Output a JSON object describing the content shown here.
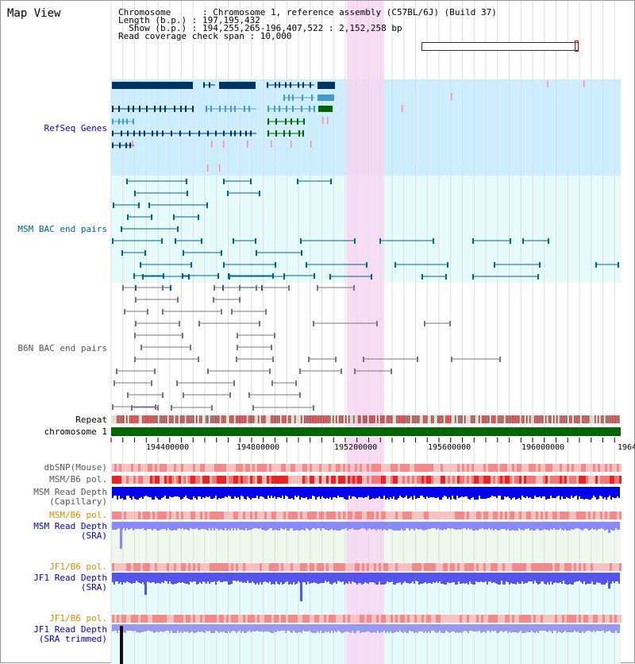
{
  "title": "Map View",
  "info": {
    "line1": "Chromosome      : Chromosome 1, reference assembly (C57BL/6J) (Build 37)",
    "line2": "Length (b.p.) : 197,195,432",
    "line3": "  Show (b.p.) : 194,255,265-196,407,522 : 2,152,258 bp",
    "line4": "Read coverage check span : 10,000"
  },
  "tracks": {
    "refseq": "RefSeq Genes",
    "msm_bac": "MSM BAC end pairs",
    "b6n_bac": "B6N BAC end pairs",
    "repeat": "Repeat",
    "chromosome": "chromosome 1",
    "dbsnp": "dbSNP(Mouse)",
    "msm_b6_pol_1": "MSM/B6 pol.",
    "msm_read_depth_cap_1": "MSM Read Depth",
    "msm_read_depth_cap_2": "(Capillary)",
    "msm_b6_pol_2": "MSM/B6 pol.",
    "msm_read_depth_sra_1": "MSM Read Depth",
    "msm_read_depth_sra_2": "(SRA)",
    "jf1_b6_pol_1": "JF1/B6 pol.",
    "jf1_read_depth_sra_1": "JF1 Read Depth",
    "jf1_read_depth_sra_2": "(SRA)",
    "jf1_b6_pol_2": "JF1/B6 pol.",
    "jf1_read_depth_trim_1": "JF1 Read Depth",
    "jf1_read_depth_trim_2": "(SRA trimmed)"
  },
  "axis_ticks": [
    "194400000",
    "194800000",
    "195200000",
    "195600000",
    "196000000",
    "1964"
  ],
  "colors": {
    "highlight": "#f8d6f2",
    "refseq_bg": "#cceeff",
    "bac_bg": "#e6fbfb",
    "gene_dark": "#003366",
    "gene_mid": "#4499cc",
    "gene_green": "#006600",
    "chromosome": "#006600"
  }
}
